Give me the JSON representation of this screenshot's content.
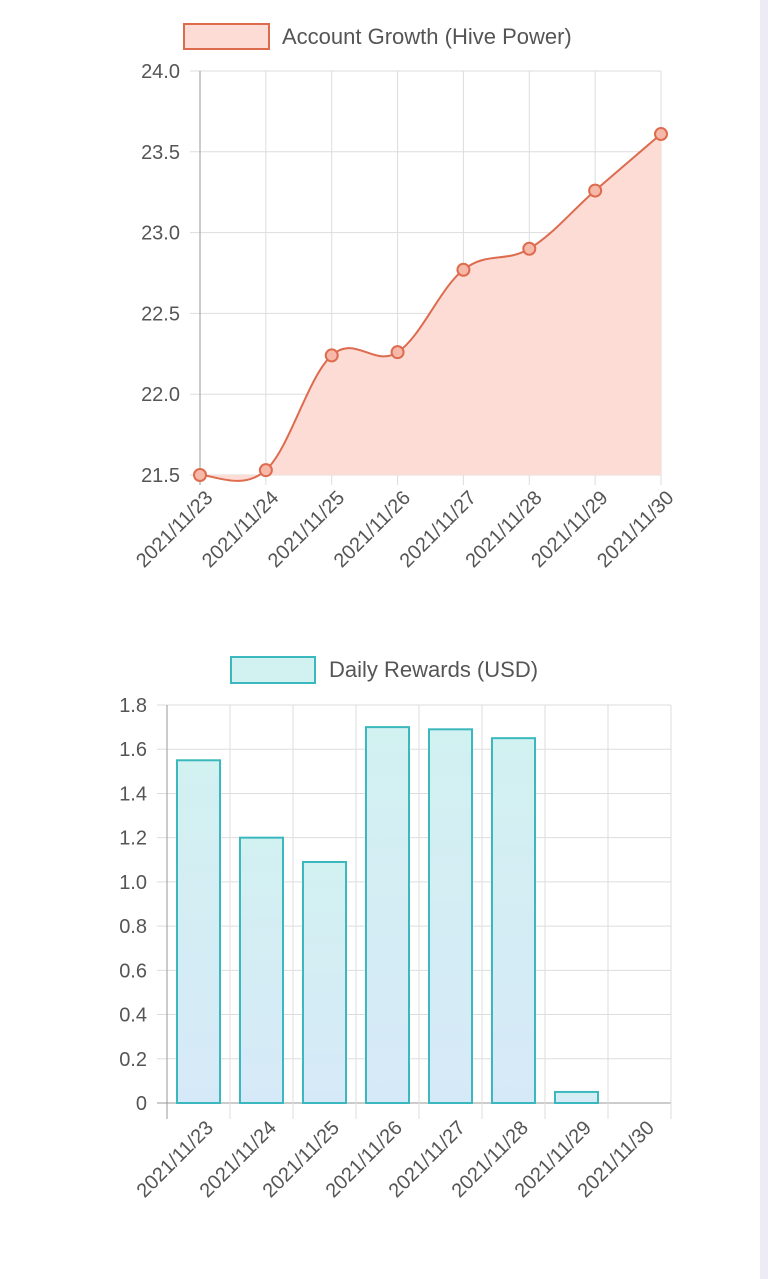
{
  "chart_data": [
    {
      "type": "area",
      "x": [
        "2021/11/23",
        "2021/11/24",
        "2021/11/25",
        "2021/11/26",
        "2021/11/27",
        "2021/11/28",
        "2021/11/29",
        "2021/11/30"
      ],
      "series": [
        {
          "name": "Account Growth (Hive Power)",
          "values": [
            21.5,
            21.53,
            22.24,
            22.26,
            22.77,
            22.9,
            23.26,
            23.61
          ]
        }
      ],
      "yticks": [
        "24.0",
        "23.5",
        "23.0",
        "22.5",
        "22.0",
        "21.5"
      ],
      "ylim": [
        21.5,
        24.0
      ],
      "grid": true,
      "legend_position": "top-center",
      "colors": {
        "line": "#dd6b4e",
        "fill": "#fddcd6",
        "point_fill": "#f6b8a8"
      }
    },
    {
      "type": "bar",
      "categories": [
        "2021/11/23",
        "2021/11/24",
        "2021/11/25",
        "2021/11/26",
        "2021/11/27",
        "2021/11/28",
        "2021/11/29",
        "2021/11/30"
      ],
      "series": [
        {
          "name": "Daily Rewards (USD)",
          "values": [
            1.55,
            1.2,
            1.09,
            1.7,
            1.69,
            1.65,
            0.05,
            0
          ]
        }
      ],
      "yticks": [
        "1.8",
        "1.6",
        "1.4",
        "1.2",
        "1.0",
        "0.8",
        "0.6",
        "0.4",
        "0.2",
        "0"
      ],
      "ylim": [
        0,
        1.8
      ],
      "grid": true,
      "legend_position": "top-center",
      "colors": {
        "border": "#3bb8bd",
        "fill_top": "#d2f1f1",
        "fill_bottom": "#d6e9f8"
      }
    }
  ]
}
